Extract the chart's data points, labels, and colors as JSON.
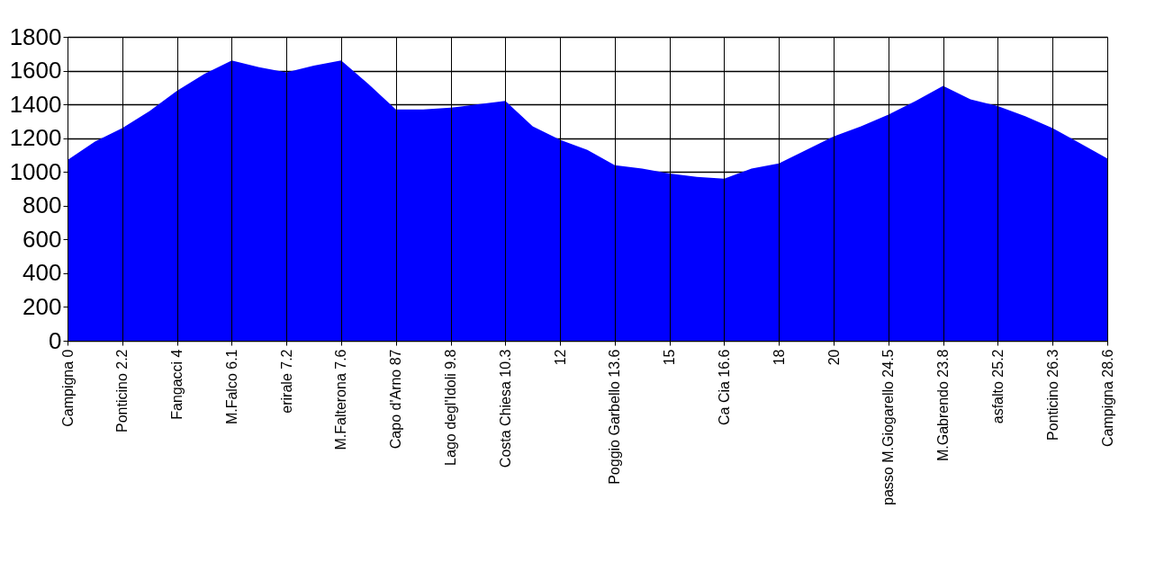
{
  "chart_data": {
    "type": "area",
    "categories": [
      "Campigna 0",
      null,
      "Ponticino 2.2",
      null,
      "Fangacci 4",
      null,
      "M.Falco 6.1",
      null,
      "erirale 7.2",
      null,
      "M.Falterona 7.6",
      null,
      "Capo d'Arno 87",
      null,
      "Lago degl'Idoli 9.8",
      null,
      "Costa Chiesa 10.3",
      null,
      "12",
      null,
      "Poggio Garbello 13.6",
      null,
      "15",
      null,
      "Ca Cia 16.6",
      null,
      "18",
      null,
      "20",
      null,
      "passo M.Giogarello 24.5",
      null,
      "M.Gabrendo 23.8",
      null,
      "asfalto 25.2",
      null,
      "Ponticino 26.3",
      null,
      "Campigna 28.6"
    ],
    "series": [
      {
        "color": "#0000ff",
        "values": [
          1070,
          1180,
          1260,
          1360,
          1480,
          1580,
          1660,
          1620,
          1590,
          1630,
          1660,
          1520,
          1370,
          1370,
          1380,
          1400,
          1420,
          1270,
          1190,
          1130,
          1040,
          1020,
          990,
          970,
          960,
          1020,
          1050,
          1130,
          1210,
          1270,
          1340,
          1420,
          1510,
          1430,
          1390,
          1330,
          1260,
          1170,
          1080
        ]
      }
    ],
    "ylim": [
      0,
      1800
    ],
    "yticks": [
      0,
      200,
      400,
      600,
      800,
      1000,
      1200,
      1400,
      1600,
      1800
    ],
    "grid": true
  }
}
